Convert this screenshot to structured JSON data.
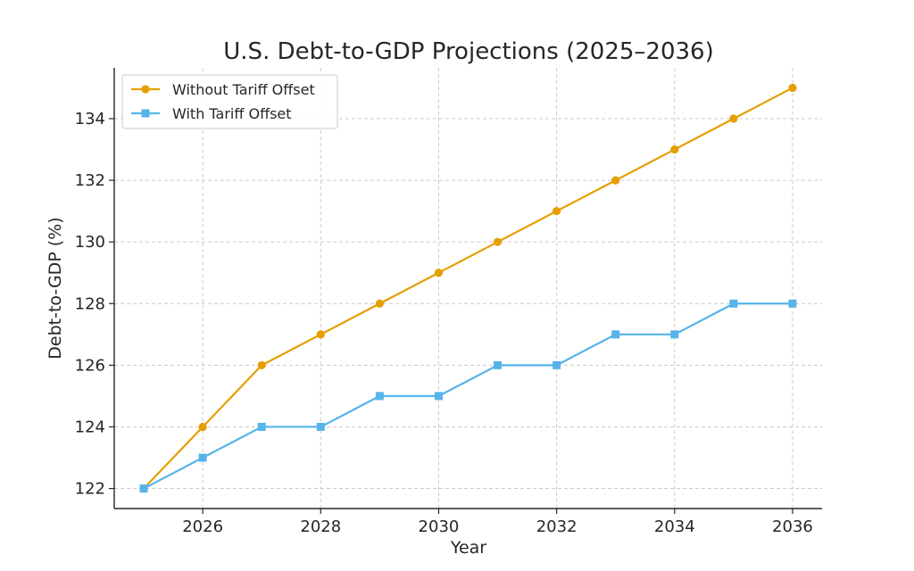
{
  "colors": {
    "without": "#E69F00",
    "with": "#56B4E9"
  },
  "chart_data": {
    "type": "line",
    "title": "U.S. Debt-to-GDP Projections (2025–2036)",
    "xlabel": "Year",
    "ylabel": "Debt-to-GDP (%)",
    "x": [
      2025,
      2026,
      2027,
      2028,
      2029,
      2030,
      2031,
      2032,
      2033,
      2034,
      2035,
      2036
    ],
    "series": [
      {
        "name": "Without Tariff Offset",
        "marker": "circle",
        "values": [
          122,
          124,
          126,
          127,
          128,
          129,
          130,
          131,
          132,
          133,
          134,
          135
        ]
      },
      {
        "name": "With Tariff Offset",
        "marker": "square",
        "values": [
          122,
          123,
          124,
          124,
          125,
          125,
          126,
          126,
          127,
          127,
          128,
          128
        ]
      }
    ],
    "xticks": [
      2026,
      2028,
      2030,
      2032,
      2034,
      2036
    ],
    "yticks": [
      122,
      124,
      126,
      128,
      130,
      132,
      134
    ],
    "xlim": [
      2024.5,
      2036.5
    ],
    "ylim": [
      121.35,
      135.65
    ],
    "grid": true,
    "legend_position": "top-left"
  }
}
